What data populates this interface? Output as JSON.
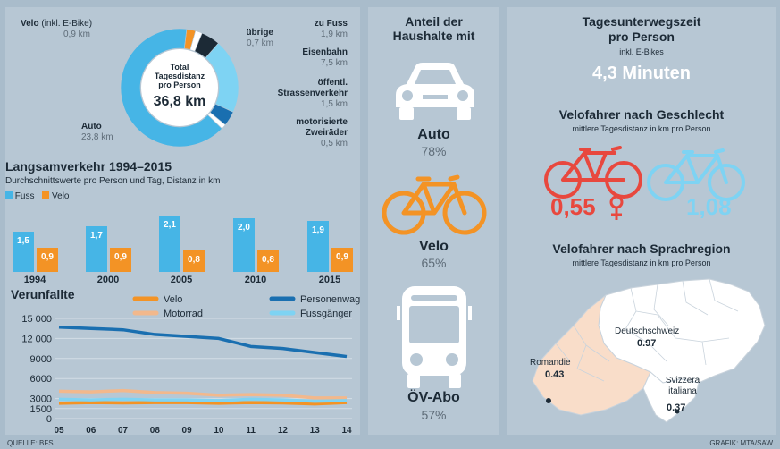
{
  "colors": {
    "bg": "#a9bccb",
    "panel": "#b7c7d4",
    "blue": "#46b5e6",
    "orange": "#f39325",
    "darkblue": "#1a6fb0",
    "lightblue": "#7ed3f3",
    "peach": "#f2b88c",
    "red": "#e8483e",
    "lightorange": "#f7c08a",
    "white": "#ffffff",
    "dark": "#1c2a36"
  },
  "donut": {
    "center_lines": [
      "Total",
      "Tagesdistanz",
      "pro Person"
    ],
    "center_value": "36,8 km",
    "labels": [
      {
        "name": "Velo",
        "note": "(inkl. E-Bike)",
        "value": "0,9 km"
      },
      {
        "name": "übrige",
        "value": "0,7 km"
      },
      {
        "name": "zu Fuss",
        "value": "1,9 km"
      },
      {
        "name": "Eisenbahn",
        "value": "7,5 km"
      },
      {
        "name": "öffentl. Strassenverkehr",
        "value": "1,5 km"
      },
      {
        "name": "motorisierte Zweiräder",
        "value": "0,5 km"
      },
      {
        "name": "Auto",
        "value": "23,8 km"
      }
    ]
  },
  "bars_title": "Langsamverkehr 1994–2015",
  "bars_subtitle": "Durchschnittswerte pro Person und Tag, Distanz in km",
  "lines_title": "Verunfallte",
  "chart_data": [
    {
      "type": "pie",
      "title": "Total Tagesdistanz pro Person",
      "total": "36,8 km",
      "slices": [
        {
          "label": "Velo (inkl. E-Bike)",
          "value": 0.9,
          "color": "#f39325"
        },
        {
          "label": "übrige",
          "value": 0.7,
          "color": "#ffffff"
        },
        {
          "label": "zu Fuss",
          "value": 1.9,
          "color": "#1c2a36"
        },
        {
          "label": "Eisenbahn",
          "value": 7.5,
          "color": "#7ed3f3"
        },
        {
          "label": "öffentl. Strassenverkehr",
          "value": 1.5,
          "color": "#1a6fb0"
        },
        {
          "label": "motorisierte Zweiräder",
          "value": 0.5,
          "color": "#ffffff"
        },
        {
          "label": "Auto",
          "value": 23.8,
          "color": "#46b5e6"
        }
      ]
    },
    {
      "type": "bar",
      "title": "Langsamverkehr 1994–2015",
      "subtitle": "Durchschnittswerte pro Person und Tag, Distanz in km",
      "categories": [
        "1994",
        "2000",
        "2005",
        "2010",
        "2015"
      ],
      "series": [
        {
          "name": "Fuss",
          "color": "#46b5e6",
          "values": [
            1.5,
            1.7,
            2.1,
            2.0,
            1.9
          ],
          "labels": [
            "1,5",
            "1,7",
            "2,1",
            "2,0",
            "1,9"
          ]
        },
        {
          "name": "Velo",
          "color": "#f39325",
          "values": [
            0.9,
            0.9,
            0.8,
            0.8,
            0.9
          ],
          "labels": [
            "0,9",
            "0,9",
            "0,8",
            "0,8",
            "0,9"
          ]
        }
      ],
      "legend": "top-left"
    },
    {
      "type": "line",
      "title": "Verunfallte",
      "x": [
        "05",
        "06",
        "07",
        "08",
        "09",
        "10",
        "11",
        "12",
        "13",
        "14"
      ],
      "yticks": [
        "0",
        "1500",
        "3000",
        "6000",
        "9000",
        "12 000",
        "15 000"
      ],
      "ytick_values": [
        0,
        1500,
        3000,
        6000,
        9000,
        12000,
        15000
      ],
      "ylim": [
        0,
        15000
      ],
      "grid": true,
      "legend": "top",
      "series": [
        {
          "name": "Velo",
          "color": "#f39325",
          "values": [
            2300,
            2400,
            2350,
            2400,
            2400,
            2300,
            2400,
            2350,
            2200,
            2400
          ]
        },
        {
          "name": "Motorrad",
          "color": "#f2b88c",
          "values": [
            4100,
            4000,
            4200,
            3900,
            3800,
            3500,
            3600,
            3500,
            3100,
            3100
          ]
        },
        {
          "name": "Personenwagen",
          "color": "#1a6fb0",
          "values": [
            13700,
            13500,
            13300,
            12600,
            12300,
            12000,
            10800,
            10500,
            9900,
            9300
          ]
        },
        {
          "name": "Fussgänger",
          "color": "#7ed3f3",
          "values": [
            2900,
            2800,
            2900,
            2800,
            2800,
            2700,
            2900,
            2800,
            2600,
            2700
          ]
        }
      ]
    }
  ],
  "household": {
    "title_lines": [
      "Anteil der",
      "Haushalte mit"
    ],
    "items": [
      {
        "label": "Auto",
        "value": "78%",
        "icon": "car-icon"
      },
      {
        "label": "Velo",
        "value": "65%",
        "icon": "bicycle-icon"
      },
      {
        "label": "ÖV-Abo",
        "value": "57%",
        "icon": "bus-icon"
      }
    ]
  },
  "right": {
    "time_title_lines": [
      "Tagesunterwegszeit",
      "pro Person"
    ],
    "time_note": "inkl. E-Bikes",
    "time_value": "4,3 Minuten",
    "gender_title": "Velofahrer nach Geschlecht",
    "gender_sub": "mittlere Tagesdistanz in km pro Person",
    "female_value": "0,55",
    "male_value": "1,08",
    "region_title": "Velofahrer nach Sprachregion",
    "region_sub": "mittlere Tagesdistanz in km pro Person",
    "regions": [
      {
        "name": "Deutschschweiz",
        "value": "0.97"
      },
      {
        "name": "Romandie",
        "value": "0.43"
      },
      {
        "name": "Svizzera italiana",
        "value": "0.37"
      }
    ]
  },
  "footer": {
    "source": "QUELLE: BFS",
    "credit": "GRAFIK: MTA/SAW"
  }
}
